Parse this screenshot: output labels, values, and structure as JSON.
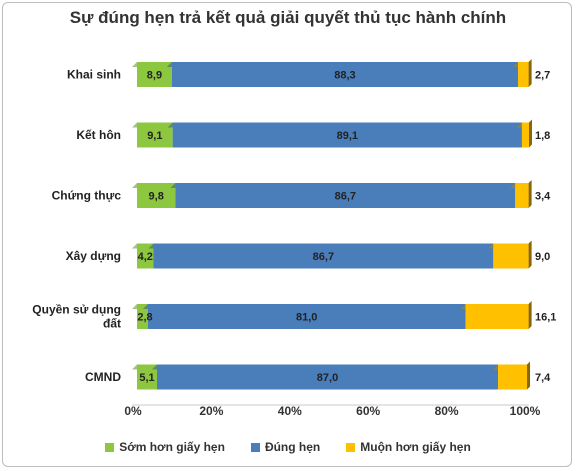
{
  "chart_data": {
    "type": "bar",
    "orientation": "horizontal",
    "stacked": true,
    "title": "Sự đúng hẹn trả kết quả giải quyết thủ tục hành chính",
    "categories": [
      "Khai sinh",
      "Kết hôn",
      "Chứng thực",
      "Xây dựng",
      "Quyền sử dụng đất",
      "CMND"
    ],
    "category_lines": [
      [
        "Khai sinh"
      ],
      [
        "Kết hôn"
      ],
      [
        "Chứng thực"
      ],
      [
        "Xây dựng"
      ],
      [
        "Quyền sử dụng",
        "đất"
      ],
      [
        "CMND"
      ]
    ],
    "series": [
      {
        "name": "Sớm hơn giấy hẹn",
        "color": "#8dc63f",
        "values": [
          8.9,
          9.1,
          9.8,
          4.2,
          2.8,
          5.1
        ],
        "labels": [
          "8,9",
          "9,1",
          "9,8",
          "4,2",
          "2,8",
          "5,1"
        ]
      },
      {
        "name": "Đúng hẹn",
        "color": "#4a7ebb",
        "values": [
          88.3,
          89.1,
          86.7,
          86.7,
          81.0,
          87.0
        ],
        "labels": [
          "88,3",
          "89,1",
          "86,7",
          "86,7",
          "81,0",
          "87,0"
        ]
      },
      {
        "name": "Muộn hơn giấy hẹn",
        "color": "#ffc000",
        "values": [
          2.7,
          1.8,
          3.4,
          9.0,
          16.1,
          7.4
        ],
        "labels": [
          "2,7",
          "1,8",
          "3,4",
          "9,0",
          "16,1",
          "7,4"
        ]
      }
    ],
    "xlim": [
      0,
      100
    ],
    "xticks": [
      "0%",
      "20%",
      "40%",
      "60%",
      "80%",
      "100%"
    ],
    "legend_position": "bottom",
    "grid": false
  }
}
